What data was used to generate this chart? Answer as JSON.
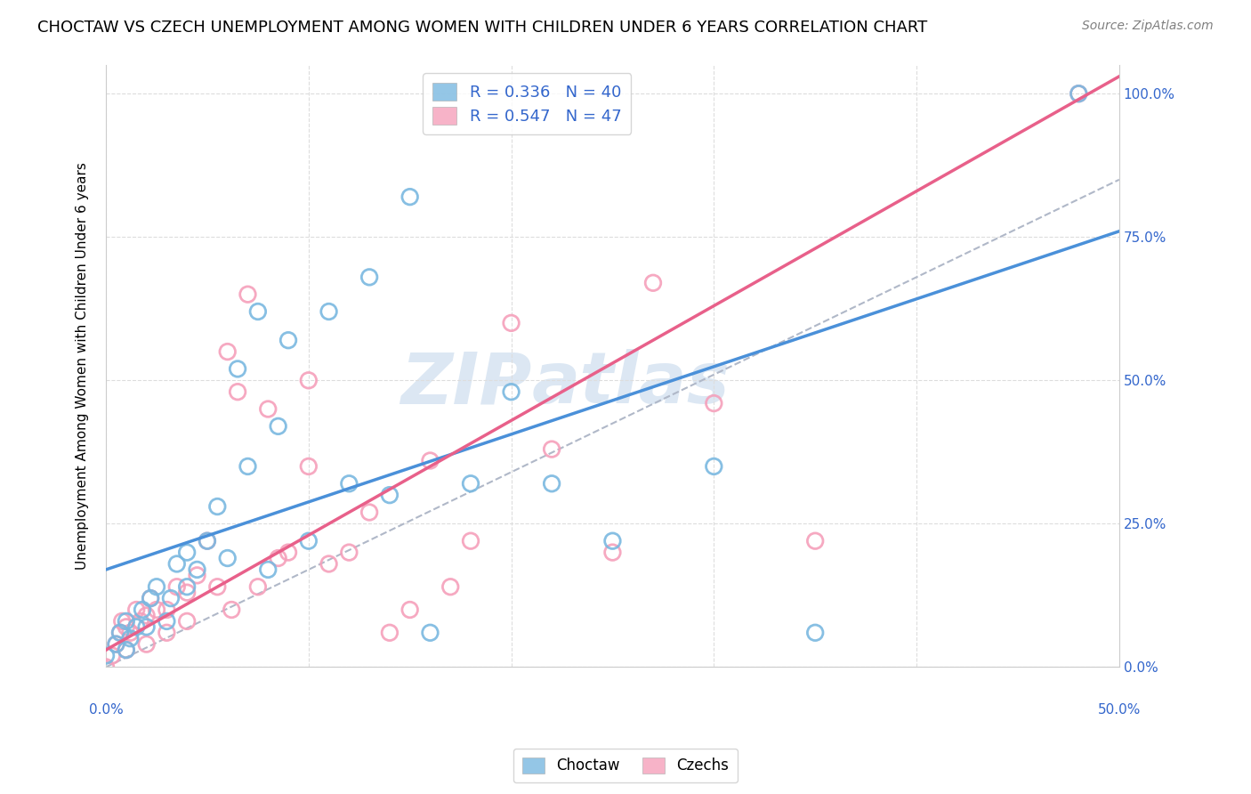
{
  "title": "CHOCTAW VS CZECH UNEMPLOYMENT AMONG WOMEN WITH CHILDREN UNDER 6 YEARS CORRELATION CHART",
  "source": "Source: ZipAtlas.com",
  "ylabel": "Unemployment Among Women with Children Under 6 years",
  "watermark_line1": "ZIP",
  "watermark_line2": "atlas",
  "choctaw_color": "#7ab8e0",
  "czech_color": "#f5a0bb",
  "choctaw_line_color": "#4a90d9",
  "czech_line_color": "#e8608a",
  "dashed_line_color": "#b0b8c8",
  "legend_color": "#3366cc",
  "xmin": 0.0,
  "xmax": 0.5,
  "ymin": 0.0,
  "ymax": 1.05,
  "yticks": [
    0.0,
    0.25,
    0.5,
    0.75,
    1.0
  ],
  "ytick_labels": [
    "0.0%",
    "25.0%",
    "50.0%",
    "75.0%",
    "100.0%"
  ],
  "choctaw_x": [
    0.0,
    0.005,
    0.007,
    0.01,
    0.01,
    0.012,
    0.015,
    0.018,
    0.02,
    0.022,
    0.025,
    0.03,
    0.032,
    0.035,
    0.04,
    0.04,
    0.045,
    0.05,
    0.055,
    0.06,
    0.065,
    0.07,
    0.075,
    0.08,
    0.085,
    0.09,
    0.1,
    0.11,
    0.12,
    0.13,
    0.14,
    0.15,
    0.16,
    0.18,
    0.2,
    0.22,
    0.25,
    0.3,
    0.35,
    0.48
  ],
  "choctaw_y": [
    0.02,
    0.04,
    0.06,
    0.03,
    0.08,
    0.05,
    0.07,
    0.1,
    0.07,
    0.12,
    0.14,
    0.08,
    0.12,
    0.18,
    0.14,
    0.2,
    0.17,
    0.22,
    0.28,
    0.19,
    0.52,
    0.35,
    0.62,
    0.17,
    0.42,
    0.57,
    0.22,
    0.62,
    0.32,
    0.68,
    0.3,
    0.82,
    0.06,
    0.32,
    0.48,
    0.32,
    0.22,
    0.35,
    0.06,
    1.0
  ],
  "czech_x": [
    0.0,
    0.003,
    0.005,
    0.007,
    0.008,
    0.01,
    0.01,
    0.012,
    0.015,
    0.017,
    0.02,
    0.02,
    0.022,
    0.025,
    0.03,
    0.03,
    0.035,
    0.04,
    0.04,
    0.045,
    0.05,
    0.055,
    0.06,
    0.062,
    0.065,
    0.07,
    0.075,
    0.08,
    0.085,
    0.09,
    0.1,
    0.1,
    0.11,
    0.12,
    0.13,
    0.14,
    0.15,
    0.16,
    0.17,
    0.18,
    0.2,
    0.22,
    0.25,
    0.27,
    0.3,
    0.35,
    0.48
  ],
  "czech_y": [
    0.0,
    0.02,
    0.04,
    0.06,
    0.08,
    0.03,
    0.07,
    0.06,
    0.1,
    0.08,
    0.04,
    0.09,
    0.12,
    0.1,
    0.06,
    0.1,
    0.14,
    0.08,
    0.13,
    0.16,
    0.22,
    0.14,
    0.55,
    0.1,
    0.48,
    0.65,
    0.14,
    0.45,
    0.19,
    0.2,
    0.35,
    0.5,
    0.18,
    0.2,
    0.27,
    0.06,
    0.1,
    0.36,
    0.14,
    0.22,
    0.6,
    0.38,
    0.2,
    0.67,
    0.46,
    0.22,
    1.0
  ],
  "title_fontsize": 13,
  "source_fontsize": 10,
  "legend_fontsize": 13,
  "ylabel_fontsize": 11,
  "tick_fontsize": 11,
  "background_color": "#ffffff",
  "grid_color": "#dddddd"
}
